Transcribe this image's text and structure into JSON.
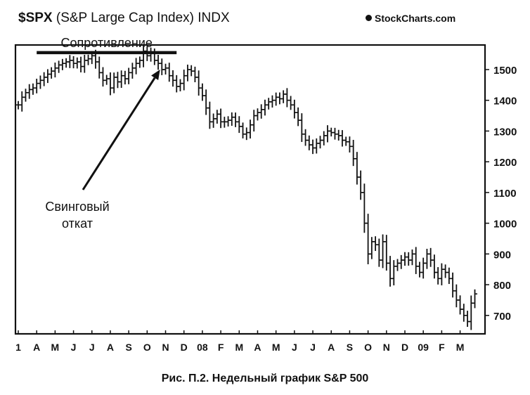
{
  "header": {
    "ticker": "$SPX",
    "description": "(S&P Large Cap Index) INDX",
    "brand": "StockCharts.com"
  },
  "caption": {
    "fig_label": "Рис. П.2.",
    "text": "Недельный график S&P 500"
  },
  "annotations": {
    "resistance": "Сопротивление",
    "swing_line1": "Свинговый",
    "swing_line2": "откат"
  },
  "colors": {
    "ink": "#111111",
    "background": "#ffffff"
  },
  "chart_data": {
    "type": "line",
    "subtype": "weekly OHLC bars",
    "title": "$SPX (S&P Large Cap Index) INDX",
    "xlabel": "",
    "ylabel": "",
    "ylim": [
      640,
      1580
    ],
    "y_ticks": [
      700,
      800,
      900,
      1000,
      1100,
      1200,
      1300,
      1400,
      1500
    ],
    "x_ticks": [
      "1",
      "A",
      "M",
      "J",
      "J",
      "A",
      "S",
      "O",
      "N",
      "D",
      "08",
      "F",
      "M",
      "A",
      "M",
      "J",
      "J",
      "A",
      "S",
      "O",
      "N",
      "D",
      "09",
      "F",
      "M"
    ],
    "x_range": [
      0,
      25.2
    ],
    "grid": false,
    "resistance_level": 1555,
    "resistance_range": [
      1,
      8.6
    ],
    "swing_arrow_target": [
      7.7,
      1500
    ],
    "series": [
      {
        "values": [
          [
            0.0,
            1385
          ],
          [
            0.2,
            1410
          ],
          [
            0.4,
            1425
          ],
          [
            0.6,
            1435
          ],
          [
            0.8,
            1440
          ],
          [
            1.0,
            1455
          ],
          [
            1.2,
            1465
          ],
          [
            1.4,
            1475
          ],
          [
            1.6,
            1485
          ],
          [
            1.8,
            1495
          ],
          [
            2.0,
            1505
          ],
          [
            2.2,
            1515
          ],
          [
            2.4,
            1520
          ],
          [
            2.6,
            1525
          ],
          [
            2.8,
            1530
          ],
          [
            3.0,
            1520
          ],
          [
            3.2,
            1525
          ],
          [
            3.4,
            1510
          ],
          [
            3.6,
            1530
          ],
          [
            3.8,
            1535
          ],
          [
            4.0,
            1545
          ],
          [
            4.2,
            1525
          ],
          [
            4.4,
            1490
          ],
          [
            4.6,
            1465
          ],
          [
            4.8,
            1470
          ],
          [
            5.0,
            1440
          ],
          [
            5.2,
            1475
          ],
          [
            5.4,
            1460
          ],
          [
            5.6,
            1480
          ],
          [
            5.8,
            1470
          ],
          [
            6.0,
            1490
          ],
          [
            6.2,
            1505
          ],
          [
            6.4,
            1520
          ],
          [
            6.6,
            1530
          ],
          [
            6.8,
            1560
          ],
          [
            7.0,
            1545
          ],
          [
            7.2,
            1555
          ],
          [
            7.4,
            1530
          ],
          [
            7.6,
            1520
          ],
          [
            7.8,
            1500
          ],
          [
            8.0,
            1505
          ],
          [
            8.2,
            1480
          ],
          [
            8.4,
            1465
          ],
          [
            8.6,
            1445
          ],
          [
            8.8,
            1455
          ],
          [
            9.0,
            1480
          ],
          [
            9.2,
            1500
          ],
          [
            9.4,
            1495
          ],
          [
            9.6,
            1475
          ],
          [
            9.8,
            1440
          ],
          [
            10.0,
            1415
          ],
          [
            10.2,
            1375
          ],
          [
            10.4,
            1330
          ],
          [
            10.6,
            1340
          ],
          [
            10.8,
            1355
          ],
          [
            11.0,
            1330
          ],
          [
            11.2,
            1330
          ],
          [
            11.4,
            1335
          ],
          [
            11.6,
            1345
          ],
          [
            11.8,
            1330
          ],
          [
            12.0,
            1315
          ],
          [
            12.2,
            1290
          ],
          [
            12.4,
            1295
          ],
          [
            12.6,
            1320
          ],
          [
            12.8,
            1350
          ],
          [
            13.0,
            1360
          ],
          [
            13.2,
            1370
          ],
          [
            13.4,
            1385
          ],
          [
            13.6,
            1395
          ],
          [
            13.8,
            1400
          ],
          [
            14.0,
            1410
          ],
          [
            14.2,
            1405
          ],
          [
            14.4,
            1420
          ],
          [
            14.6,
            1400
          ],
          [
            14.8,
            1385
          ],
          [
            15.0,
            1360
          ],
          [
            15.2,
            1335
          ],
          [
            15.4,
            1290
          ],
          [
            15.6,
            1270
          ],
          [
            15.8,
            1255
          ],
          [
            16.0,
            1245
          ],
          [
            16.2,
            1260
          ],
          [
            16.4,
            1270
          ],
          [
            16.6,
            1285
          ],
          [
            16.8,
            1300
          ],
          [
            17.0,
            1295
          ],
          [
            17.2,
            1290
          ],
          [
            17.4,
            1285
          ],
          [
            17.6,
            1270
          ],
          [
            17.8,
            1265
          ],
          [
            18.0,
            1250
          ],
          [
            18.2,
            1210
          ],
          [
            18.4,
            1150
          ],
          [
            18.6,
            1100
          ],
          [
            18.8,
            1000
          ],
          [
            19.0,
            900
          ],
          [
            19.2,
            940
          ],
          [
            19.4,
            930
          ],
          [
            19.6,
            880
          ],
          [
            19.8,
            940
          ],
          [
            20.0,
            870
          ],
          [
            20.2,
            820
          ],
          [
            20.4,
            860
          ],
          [
            20.6,
            870
          ],
          [
            20.8,
            880
          ],
          [
            21.0,
            890
          ],
          [
            21.2,
            880
          ],
          [
            21.4,
            900
          ],
          [
            21.6,
            860
          ],
          [
            21.8,
            840
          ],
          [
            22.0,
            870
          ],
          [
            22.2,
            900
          ],
          [
            22.4,
            880
          ],
          [
            22.6,
            840
          ],
          [
            22.8,
            820
          ],
          [
            23.0,
            850
          ],
          [
            23.2,
            840
          ],
          [
            23.4,
            820
          ],
          [
            23.6,
            780
          ],
          [
            23.8,
            750
          ],
          [
            24.0,
            720
          ],
          [
            24.2,
            700
          ],
          [
            24.4,
            680
          ],
          [
            24.6,
            740
          ],
          [
            24.8,
            770
          ]
        ]
      }
    ]
  }
}
